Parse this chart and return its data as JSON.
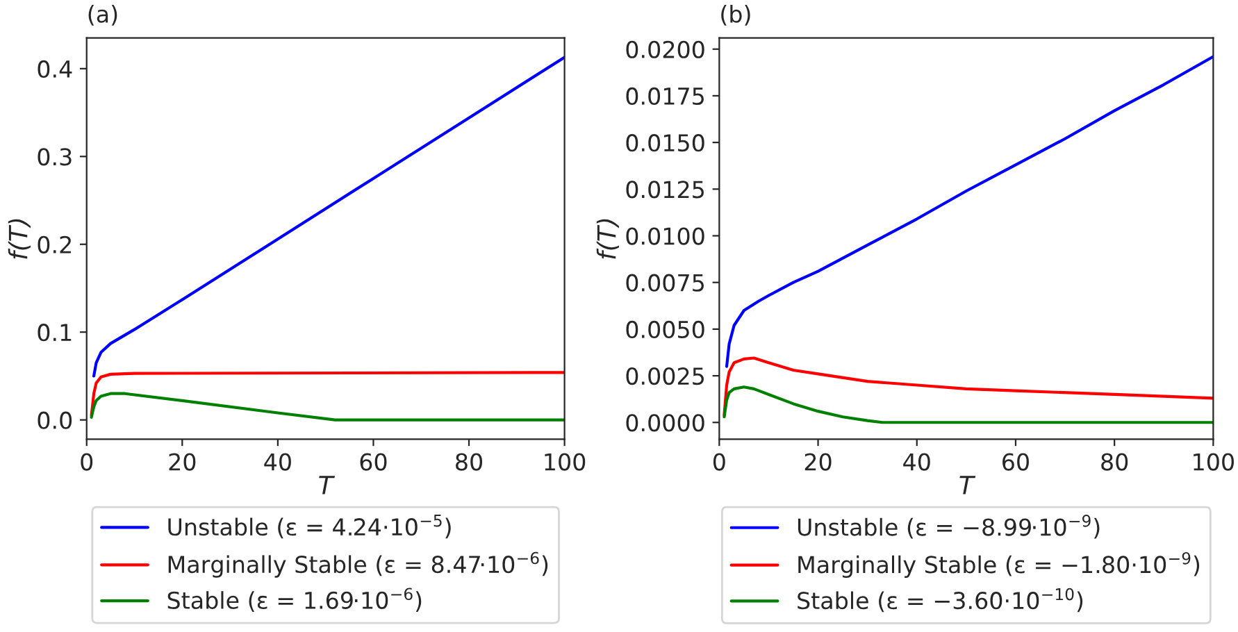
{
  "chart_data": [
    {
      "type": "line",
      "title": "(a)",
      "xlabel": "T",
      "ylabel": "f(T)",
      "xlim": [
        0,
        100
      ],
      "ylim": [
        -0.022,
        0.435
      ],
      "xticks": [
        0,
        20,
        40,
        60,
        80,
        100
      ],
      "yticks": [
        {
          "value": 0,
          "label": "0.0"
        },
        0.1,
        0.2,
        0.3,
        0.4
      ],
      "grid": false,
      "legend": "bottom",
      "series": [
        {
          "name": "Unstable (ε = 4.24·10$^{−5}$)",
          "color": "#0000ff",
          "x": [
            1.5,
            2,
            3,
            5,
            10,
            20,
            40,
            60,
            80,
            100
          ],
          "values": [
            0.05,
            0.065,
            0.077,
            0.087,
            0.103,
            0.137,
            0.206,
            0.275,
            0.344,
            0.413
          ]
        },
        {
          "name": "Marginally Stable (ε = 8.47·10$^{−6}$)",
          "color": "#ff0000",
          "x": [
            1,
            1.5,
            2,
            3,
            5,
            10,
            100
          ],
          "values": [
            0.005,
            0.03,
            0.042,
            0.049,
            0.052,
            0.053,
            0.054
          ]
        },
        {
          "name": "Stable (ε = 1.69·10$^{−6}$)",
          "color": "#008000",
          "x": [
            1,
            1.5,
            2,
            3,
            5,
            8,
            20,
            40,
            52,
            100
          ],
          "values": [
            0.003,
            0.015,
            0.022,
            0.027,
            0.03,
            0.03,
            0.022,
            0.008,
            0.0,
            0.0
          ]
        }
      ]
    },
    {
      "type": "line",
      "title": "(b)",
      "xlabel": "T",
      "ylabel": "f(T)",
      "xlim": [
        0,
        100
      ],
      "ylim": [
        -0.0009,
        0.0206
      ],
      "xticks": [
        0,
        20,
        40,
        60,
        80,
        100
      ],
      "yticks": [
        {
          "value": 0,
          "label": "0.0000"
        },
        {
          "value": 0.0025,
          "label": "0.0025"
        },
        {
          "value": 0.005,
          "label": "0.0050"
        },
        {
          "value": 0.0075,
          "label": "0.0075"
        },
        {
          "value": 0.01,
          "label": "0.0100"
        },
        {
          "value": 0.0125,
          "label": "0.0125"
        },
        {
          "value": 0.015,
          "label": "0.0150"
        },
        {
          "value": 0.0175,
          "label": "0.0175"
        },
        {
          "value": 0.02,
          "label": "0.0200"
        }
      ],
      "grid": false,
      "legend": "bottom",
      "series": [
        {
          "name": "Unstable (ε = −8.99·10$^{−9}$)",
          "color": "#0000ff",
          "x": [
            1.5,
            2,
            3,
            5,
            8,
            10,
            15,
            20,
            30,
            40,
            50,
            60,
            70,
            80,
            90,
            100
          ],
          "values": [
            0.003,
            0.0042,
            0.0052,
            0.006,
            0.0065,
            0.0068,
            0.0075,
            0.0081,
            0.0095,
            0.0109,
            0.0124,
            0.0138,
            0.0152,
            0.0167,
            0.0181,
            0.0196
          ]
        },
        {
          "name": "Marginally Stable (ε = −1.80·10$^{−9}$)",
          "color": "#ff0000",
          "x": [
            1,
            1.5,
            2,
            3,
            5,
            7,
            10,
            15,
            20,
            30,
            40,
            50,
            60,
            80,
            100
          ],
          "values": [
            0.0004,
            0.002,
            0.0027,
            0.0032,
            0.0034,
            0.00345,
            0.0032,
            0.0028,
            0.0026,
            0.0022,
            0.002,
            0.0018,
            0.0017,
            0.0015,
            0.0013
          ]
        },
        {
          "name": "Stable (ε = −3.60·10$^{−10}$)",
          "color": "#008000",
          "x": [
            1,
            1.5,
            2,
            3,
            5,
            7,
            10,
            15,
            20,
            25,
            30,
            33,
            100
          ],
          "values": [
            0.0003,
            0.0012,
            0.0016,
            0.0018,
            0.0019,
            0.0018,
            0.0015,
            0.001,
            0.0006,
            0.0003,
            0.0001,
            0,
            0
          ]
        }
      ]
    }
  ]
}
